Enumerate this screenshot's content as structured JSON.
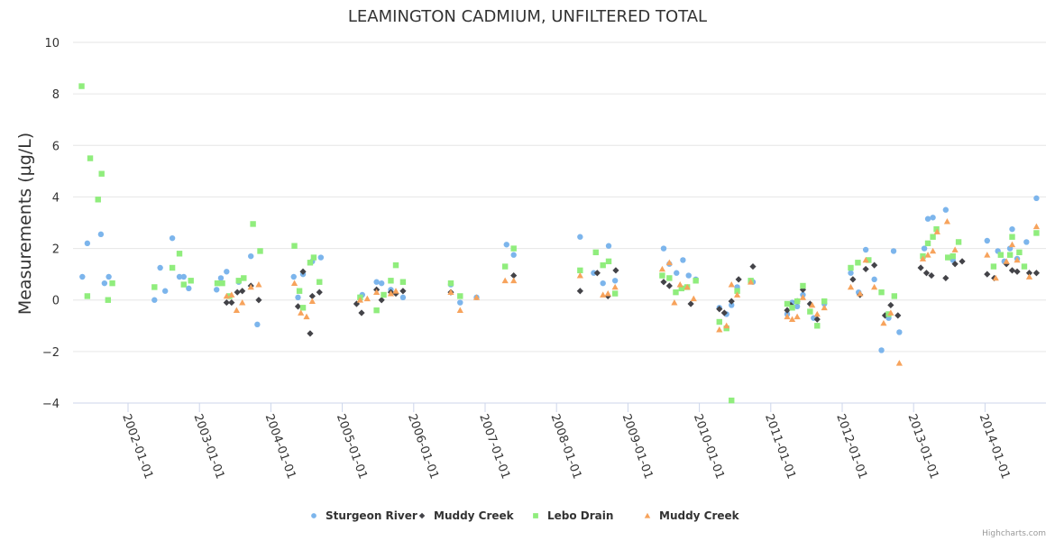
{
  "chart_data": {
    "type": "scatter",
    "title": "LEAMINGTON CADMIUM, UNFILTERED TOTAL",
    "xlabel": "",
    "ylabel": "Measurements (µg/L)",
    "ylim": [
      -4,
      10
    ],
    "yticks": [
      -4,
      -2,
      0,
      2,
      4,
      6,
      8,
      10
    ],
    "xlim": [
      2001.23,
      2014.83
    ],
    "xticks": [
      {
        "value": 2002,
        "label": "2002-01-01"
      },
      {
        "value": 2003,
        "label": "2003-01-01"
      },
      {
        "value": 2004,
        "label": "2004-01-01"
      },
      {
        "value": 2005,
        "label": "2005-01-01"
      },
      {
        "value": 2006,
        "label": "2006-01-01"
      },
      {
        "value": 2007,
        "label": "2007-01-01"
      },
      {
        "value": 2008,
        "label": "2008-01-01"
      },
      {
        "value": 2009,
        "label": "2009-01-01"
      },
      {
        "value": 2010,
        "label": "2010-01-01"
      },
      {
        "value": 2011,
        "label": "2011-01-01"
      },
      {
        "value": 2012,
        "label": "2012-01-01"
      },
      {
        "value": 2013,
        "label": "2013-01-01"
      },
      {
        "value": 2014,
        "label": "2014-01-01"
      }
    ],
    "grid": true,
    "legend_position": "bottom-center",
    "x_is_date": true,
    "series": [
      {
        "name": "Sturgeon River",
        "marker": "circle",
        "color": "#7cb5ec",
        "points": [
          [
            2001.36,
            0.9
          ],
          [
            2001.43,
            2.2
          ],
          [
            2001.62,
            2.55
          ],
          [
            2001.67,
            0.65
          ],
          [
            2001.73,
            0.9
          ],
          [
            2002.37,
            0.0
          ],
          [
            2002.45,
            1.25
          ],
          [
            2002.52,
            0.35
          ],
          [
            2002.62,
            2.4
          ],
          [
            2002.72,
            0.9
          ],
          [
            2002.78,
            0.9
          ],
          [
            2002.85,
            0.45
          ],
          [
            2003.24,
            0.4
          ],
          [
            2003.3,
            0.85
          ],
          [
            2003.38,
            1.1
          ],
          [
            2003.55,
            0.7
          ],
          [
            2003.72,
            1.7
          ],
          [
            2003.81,
            -0.95
          ],
          [
            2004.32,
            0.9
          ],
          [
            2004.38,
            0.1
          ],
          [
            2004.45,
            1.0
          ],
          [
            2004.58,
            1.5
          ],
          [
            2004.7,
            1.65
          ],
          [
            2005.28,
            0.2
          ],
          [
            2005.48,
            0.7
          ],
          [
            2005.55,
            0.65
          ],
          [
            2005.68,
            0.4
          ],
          [
            2005.85,
            0.1
          ],
          [
            2006.52,
            0.6
          ],
          [
            2006.65,
            -0.1
          ],
          [
            2006.88,
            0.1
          ],
          [
            2007.3,
            2.15
          ],
          [
            2007.4,
            1.75
          ],
          [
            2008.33,
            2.45
          ],
          [
            2008.52,
            1.05
          ],
          [
            2008.65,
            0.65
          ],
          [
            2008.73,
            2.1
          ],
          [
            2008.82,
            0.75
          ],
          [
            2009.5,
            2.0
          ],
          [
            2009.58,
            1.4
          ],
          [
            2009.68,
            1.05
          ],
          [
            2009.77,
            1.55
          ],
          [
            2009.85,
            0.95
          ],
          [
            2009.95,
            0.8
          ],
          [
            2010.28,
            -0.3
          ],
          [
            2010.38,
            -0.55
          ],
          [
            2010.45,
            -0.2
          ],
          [
            2010.53,
            0.5
          ],
          [
            2010.75,
            0.7
          ],
          [
            2011.23,
            -0.55
          ],
          [
            2011.3,
            -0.1
          ],
          [
            2011.37,
            -0.25
          ],
          [
            2011.45,
            0.2
          ],
          [
            2011.6,
            -0.7
          ],
          [
            2011.75,
            -0.15
          ],
          [
            2012.12,
            1.05
          ],
          [
            2012.23,
            0.3
          ],
          [
            2012.33,
            1.95
          ],
          [
            2012.45,
            0.8
          ],
          [
            2012.55,
            -1.95
          ],
          [
            2012.65,
            -0.7
          ],
          [
            2012.72,
            1.9
          ],
          [
            2012.8,
            -1.25
          ],
          [
            2013.15,
            2.0
          ],
          [
            2013.2,
            3.15
          ],
          [
            2013.27,
            3.2
          ],
          [
            2013.45,
            3.5
          ],
          [
            2013.55,
            1.55
          ],
          [
            2014.03,
            2.3
          ],
          [
            2014.18,
            1.9
          ],
          [
            2014.27,
            1.5
          ],
          [
            2014.35,
            2.0
          ],
          [
            2014.38,
            2.75
          ],
          [
            2014.45,
            1.6
          ],
          [
            2014.58,
            2.25
          ],
          [
            2014.72,
            3.95
          ]
        ]
      },
      {
        "name": "Muddy Creek",
        "marker": "diamond",
        "color": "#434348",
        "points": [
          [
            2003.38,
            -0.1
          ],
          [
            2003.45,
            -0.1
          ],
          [
            2003.53,
            0.3
          ],
          [
            2003.6,
            0.35
          ],
          [
            2003.72,
            0.55
          ],
          [
            2003.83,
            0.0
          ],
          [
            2004.38,
            -0.25
          ],
          [
            2004.45,
            1.1
          ],
          [
            2004.55,
            -1.3
          ],
          [
            2004.58,
            0.15
          ],
          [
            2004.68,
            0.3
          ],
          [
            2005.2,
            -0.15
          ],
          [
            2005.27,
            -0.5
          ],
          [
            2005.48,
            0.4
          ],
          [
            2005.55,
            0.0
          ],
          [
            2005.68,
            0.3
          ],
          [
            2005.75,
            0.25
          ],
          [
            2005.85,
            0.35
          ],
          [
            2006.52,
            0.3
          ],
          [
            2007.4,
            0.95
          ],
          [
            2008.33,
            0.35
          ],
          [
            2008.57,
            1.05
          ],
          [
            2008.72,
            0.15
          ],
          [
            2008.83,
            1.15
          ],
          [
            2009.5,
            0.7
          ],
          [
            2009.58,
            0.55
          ],
          [
            2009.88,
            -0.15
          ],
          [
            2010.28,
            -0.35
          ],
          [
            2010.35,
            -0.5
          ],
          [
            2010.45,
            -0.05
          ],
          [
            2010.55,
            0.8
          ],
          [
            2010.75,
            1.3
          ],
          [
            2011.23,
            -0.4
          ],
          [
            2011.28,
            -0.2
          ],
          [
            2011.37,
            -0.05
          ],
          [
            2011.45,
            0.4
          ],
          [
            2011.55,
            -0.15
          ],
          [
            2011.65,
            -0.75
          ],
          [
            2012.15,
            0.8
          ],
          [
            2012.25,
            0.2
          ],
          [
            2012.33,
            1.2
          ],
          [
            2012.45,
            1.35
          ],
          [
            2012.6,
            -0.6
          ],
          [
            2012.68,
            -0.2
          ],
          [
            2012.78,
            -0.6
          ],
          [
            2013.1,
            1.25
          ],
          [
            2013.18,
            1.05
          ],
          [
            2013.25,
            0.95
          ],
          [
            2013.45,
            0.85
          ],
          [
            2013.58,
            1.4
          ],
          [
            2013.68,
            1.5
          ],
          [
            2014.03,
            1.0
          ],
          [
            2014.13,
            0.85
          ],
          [
            2014.3,
            1.4
          ],
          [
            2014.38,
            1.15
          ],
          [
            2014.45,
            1.1
          ],
          [
            2014.62,
            1.05
          ],
          [
            2014.72,
            1.05
          ]
        ]
      },
      {
        "name": "Lebo Drain",
        "marker": "square",
        "color": "#90ed7d",
        "points": [
          [
            2001.35,
            8.3
          ],
          [
            2001.43,
            0.15
          ],
          [
            2001.47,
            5.5
          ],
          [
            2001.58,
            3.9
          ],
          [
            2001.63,
            4.9
          ],
          [
            2001.72,
            0.0
          ],
          [
            2001.78,
            0.65
          ],
          [
            2002.37,
            0.5
          ],
          [
            2002.62,
            1.25
          ],
          [
            2002.72,
            1.8
          ],
          [
            2002.78,
            0.6
          ],
          [
            2002.88,
            0.75
          ],
          [
            2003.25,
            0.65
          ],
          [
            2003.32,
            0.65
          ],
          [
            2003.42,
            0.15
          ],
          [
            2003.55,
            0.75
          ],
          [
            2003.62,
            0.85
          ],
          [
            2003.75,
            2.95
          ],
          [
            2003.85,
            1.9
          ],
          [
            2004.33,
            2.1
          ],
          [
            2004.4,
            0.35
          ],
          [
            2004.45,
            -0.3
          ],
          [
            2004.55,
            1.45
          ],
          [
            2004.6,
            1.65
          ],
          [
            2004.68,
            0.7
          ],
          [
            2005.25,
            0.1
          ],
          [
            2005.48,
            -0.4
          ],
          [
            2005.58,
            0.2
          ],
          [
            2005.68,
            0.75
          ],
          [
            2005.75,
            1.35
          ],
          [
            2005.85,
            0.7
          ],
          [
            2006.52,
            0.65
          ],
          [
            2006.65,
            0.15
          ],
          [
            2007.28,
            1.3
          ],
          [
            2007.4,
            2.0
          ],
          [
            2008.33,
            1.15
          ],
          [
            2008.55,
            1.85
          ],
          [
            2008.65,
            1.35
          ],
          [
            2008.73,
            1.5
          ],
          [
            2008.82,
            0.25
          ],
          [
            2009.48,
            0.95
          ],
          [
            2009.58,
            0.85
          ],
          [
            2009.67,
            0.3
          ],
          [
            2009.75,
            0.45
          ],
          [
            2009.83,
            0.5
          ],
          [
            2009.95,
            0.75
          ],
          [
            2010.28,
            -0.85
          ],
          [
            2010.38,
            -1.1
          ],
          [
            2010.45,
            -3.9
          ],
          [
            2010.53,
            0.35
          ],
          [
            2010.72,
            0.75
          ],
          [
            2011.23,
            -0.15
          ],
          [
            2011.3,
            -0.3
          ],
          [
            2011.37,
            -0.05
          ],
          [
            2011.45,
            0.55
          ],
          [
            2011.55,
            -0.45
          ],
          [
            2011.65,
            -1.0
          ],
          [
            2011.75,
            -0.05
          ],
          [
            2012.12,
            1.25
          ],
          [
            2012.22,
            1.45
          ],
          [
            2012.37,
            1.55
          ],
          [
            2012.55,
            0.3
          ],
          [
            2012.65,
            -0.55
          ],
          [
            2012.73,
            0.15
          ],
          [
            2013.13,
            1.7
          ],
          [
            2013.2,
            2.2
          ],
          [
            2013.27,
            2.45
          ],
          [
            2013.32,
            2.75
          ],
          [
            2013.48,
            1.65
          ],
          [
            2013.55,
            1.7
          ],
          [
            2013.63,
            2.25
          ],
          [
            2014.12,
            1.3
          ],
          [
            2014.22,
            1.75
          ],
          [
            2014.35,
            1.75
          ],
          [
            2014.38,
            2.45
          ],
          [
            2014.48,
            1.85
          ],
          [
            2014.55,
            1.3
          ],
          [
            2014.72,
            2.6
          ]
        ]
      },
      {
        "name": "Muddy Creek",
        "marker": "triangle",
        "color": "#f7a35c",
        "points": [
          [
            2003.38,
            0.15
          ],
          [
            2003.45,
            0.2
          ],
          [
            2003.52,
            -0.4
          ],
          [
            2003.6,
            -0.1
          ],
          [
            2003.72,
            0.5
          ],
          [
            2003.83,
            0.6
          ],
          [
            2004.33,
            0.65
          ],
          [
            2004.42,
            -0.5
          ],
          [
            2004.5,
            -0.65
          ],
          [
            2004.58,
            -0.05
          ],
          [
            2005.25,
            0.0
          ],
          [
            2005.35,
            0.05
          ],
          [
            2005.48,
            0.3
          ],
          [
            2005.68,
            0.25
          ],
          [
            2005.75,
            0.35
          ],
          [
            2006.52,
            0.3
          ],
          [
            2006.65,
            -0.4
          ],
          [
            2006.88,
            0.1
          ],
          [
            2007.28,
            0.75
          ],
          [
            2007.4,
            0.75
          ],
          [
            2008.33,
            0.95
          ],
          [
            2008.65,
            0.2
          ],
          [
            2008.72,
            0.25
          ],
          [
            2008.82,
            0.5
          ],
          [
            2009.48,
            1.2
          ],
          [
            2009.58,
            1.45
          ],
          [
            2009.65,
            -0.1
          ],
          [
            2009.73,
            0.6
          ],
          [
            2009.83,
            0.5
          ],
          [
            2009.92,
            0.05
          ],
          [
            2010.28,
            -1.15
          ],
          [
            2010.38,
            -1.0
          ],
          [
            2010.45,
            0.6
          ],
          [
            2010.53,
            0.2
          ],
          [
            2010.72,
            0.7
          ],
          [
            2011.23,
            -0.65
          ],
          [
            2011.3,
            -0.75
          ],
          [
            2011.37,
            -0.65
          ],
          [
            2011.45,
            0.1
          ],
          [
            2011.58,
            -0.2
          ],
          [
            2011.65,
            -0.55
          ],
          [
            2011.75,
            -0.3
          ],
          [
            2012.12,
            0.5
          ],
          [
            2012.25,
            0.25
          ],
          [
            2012.33,
            1.55
          ],
          [
            2012.45,
            0.5
          ],
          [
            2012.58,
            -0.9
          ],
          [
            2012.68,
            -0.5
          ],
          [
            2012.8,
            -2.45
          ],
          [
            2013.13,
            1.6
          ],
          [
            2013.2,
            1.75
          ],
          [
            2013.27,
            1.9
          ],
          [
            2013.33,
            2.65
          ],
          [
            2013.47,
            3.05
          ],
          [
            2013.58,
            1.95
          ],
          [
            2014.03,
            1.75
          ],
          [
            2014.15,
            0.85
          ],
          [
            2014.3,
            1.5
          ],
          [
            2014.38,
            2.15
          ],
          [
            2014.45,
            1.55
          ],
          [
            2014.62,
            0.9
          ],
          [
            2014.72,
            2.85
          ]
        ]
      }
    ]
  },
  "credit": "Highcharts.com"
}
